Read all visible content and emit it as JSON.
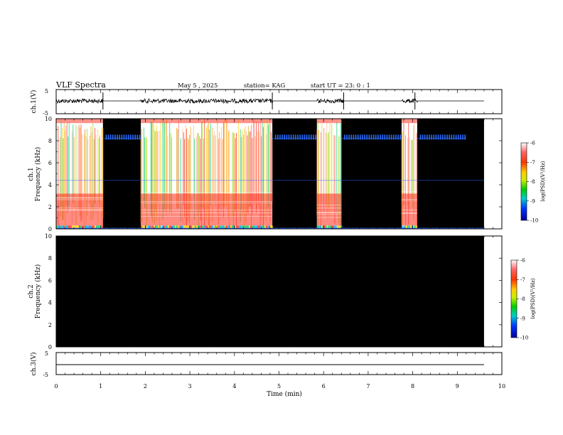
{
  "header": {
    "title": "VLF Spectra",
    "date": "May 5 , 2025",
    "station": "station= KAG",
    "start": "start UT = 23: 0 : 1"
  },
  "chart_data": [
    {
      "id": "ch1-waveform",
      "type": "line",
      "ylabel": "ch.1(V)",
      "ylim": [
        -5,
        5
      ],
      "yticks": [
        "5",
        "-5"
      ],
      "xlim": [
        0,
        10
      ],
      "segments": [
        [
          0,
          1.05
        ],
        [
          1.9,
          4.85
        ],
        [
          5.85,
          6.45
        ],
        [
          7.75,
          8.1
        ]
      ],
      "data_end_min": 9.6
    },
    {
      "id": "ch1-spectrogram",
      "type": "heatmap",
      "ylabel": "ch.1\nFrequency (kHz)",
      "ylim": [
        0,
        10
      ],
      "yticks": [
        "0",
        "2",
        "4",
        "6",
        "8",
        "10"
      ],
      "xlim": [
        0,
        10
      ],
      "active_segments": [
        [
          0,
          1.05
        ],
        [
          1.9,
          4.85
        ],
        [
          5.85,
          6.4
        ],
        [
          7.75,
          8.1
        ]
      ],
      "data_end_min": 9.6,
      "colorbar": {
        "label": "log(PSD)(V²/Hz)",
        "ticks": [
          "-6",
          "-7",
          "-8",
          "-9",
          "-10"
        ],
        "range": [
          -10,
          -6
        ]
      }
    },
    {
      "id": "ch2-spectrogram",
      "type": "heatmap",
      "ylabel": "ch.2\nFrequency (kHz)",
      "ylim": [
        0,
        10
      ],
      "yticks": [
        "0",
        "2",
        "4",
        "6",
        "8",
        "10"
      ],
      "xlim": [
        0,
        10
      ],
      "data_end_min": 9.6,
      "colorbar": {
        "label": "log(PSD)(V²/Hz)",
        "ticks": [
          "-6",
          "-7",
          "-8",
          "-9",
          "-10"
        ],
        "range": [
          -10,
          -6
        ]
      }
    },
    {
      "id": "ch3-waveform",
      "type": "line",
      "ylabel": "ch.3(V)",
      "ylim": [
        -5,
        5
      ],
      "yticks": [
        "5",
        "-5"
      ],
      "xlim": [
        0,
        10
      ],
      "data_end_min": 9.6
    }
  ],
  "xaxis": {
    "label": "Time (min)",
    "ticks": [
      "0",
      "1",
      "2",
      "3",
      "4",
      "5",
      "6",
      "7",
      "8",
      "9",
      "10"
    ]
  },
  "colors": {
    "spectrogram_background": "#000000",
    "narrowband_line": "#2a6cff",
    "noise_red": "#ff2a1a"
  }
}
